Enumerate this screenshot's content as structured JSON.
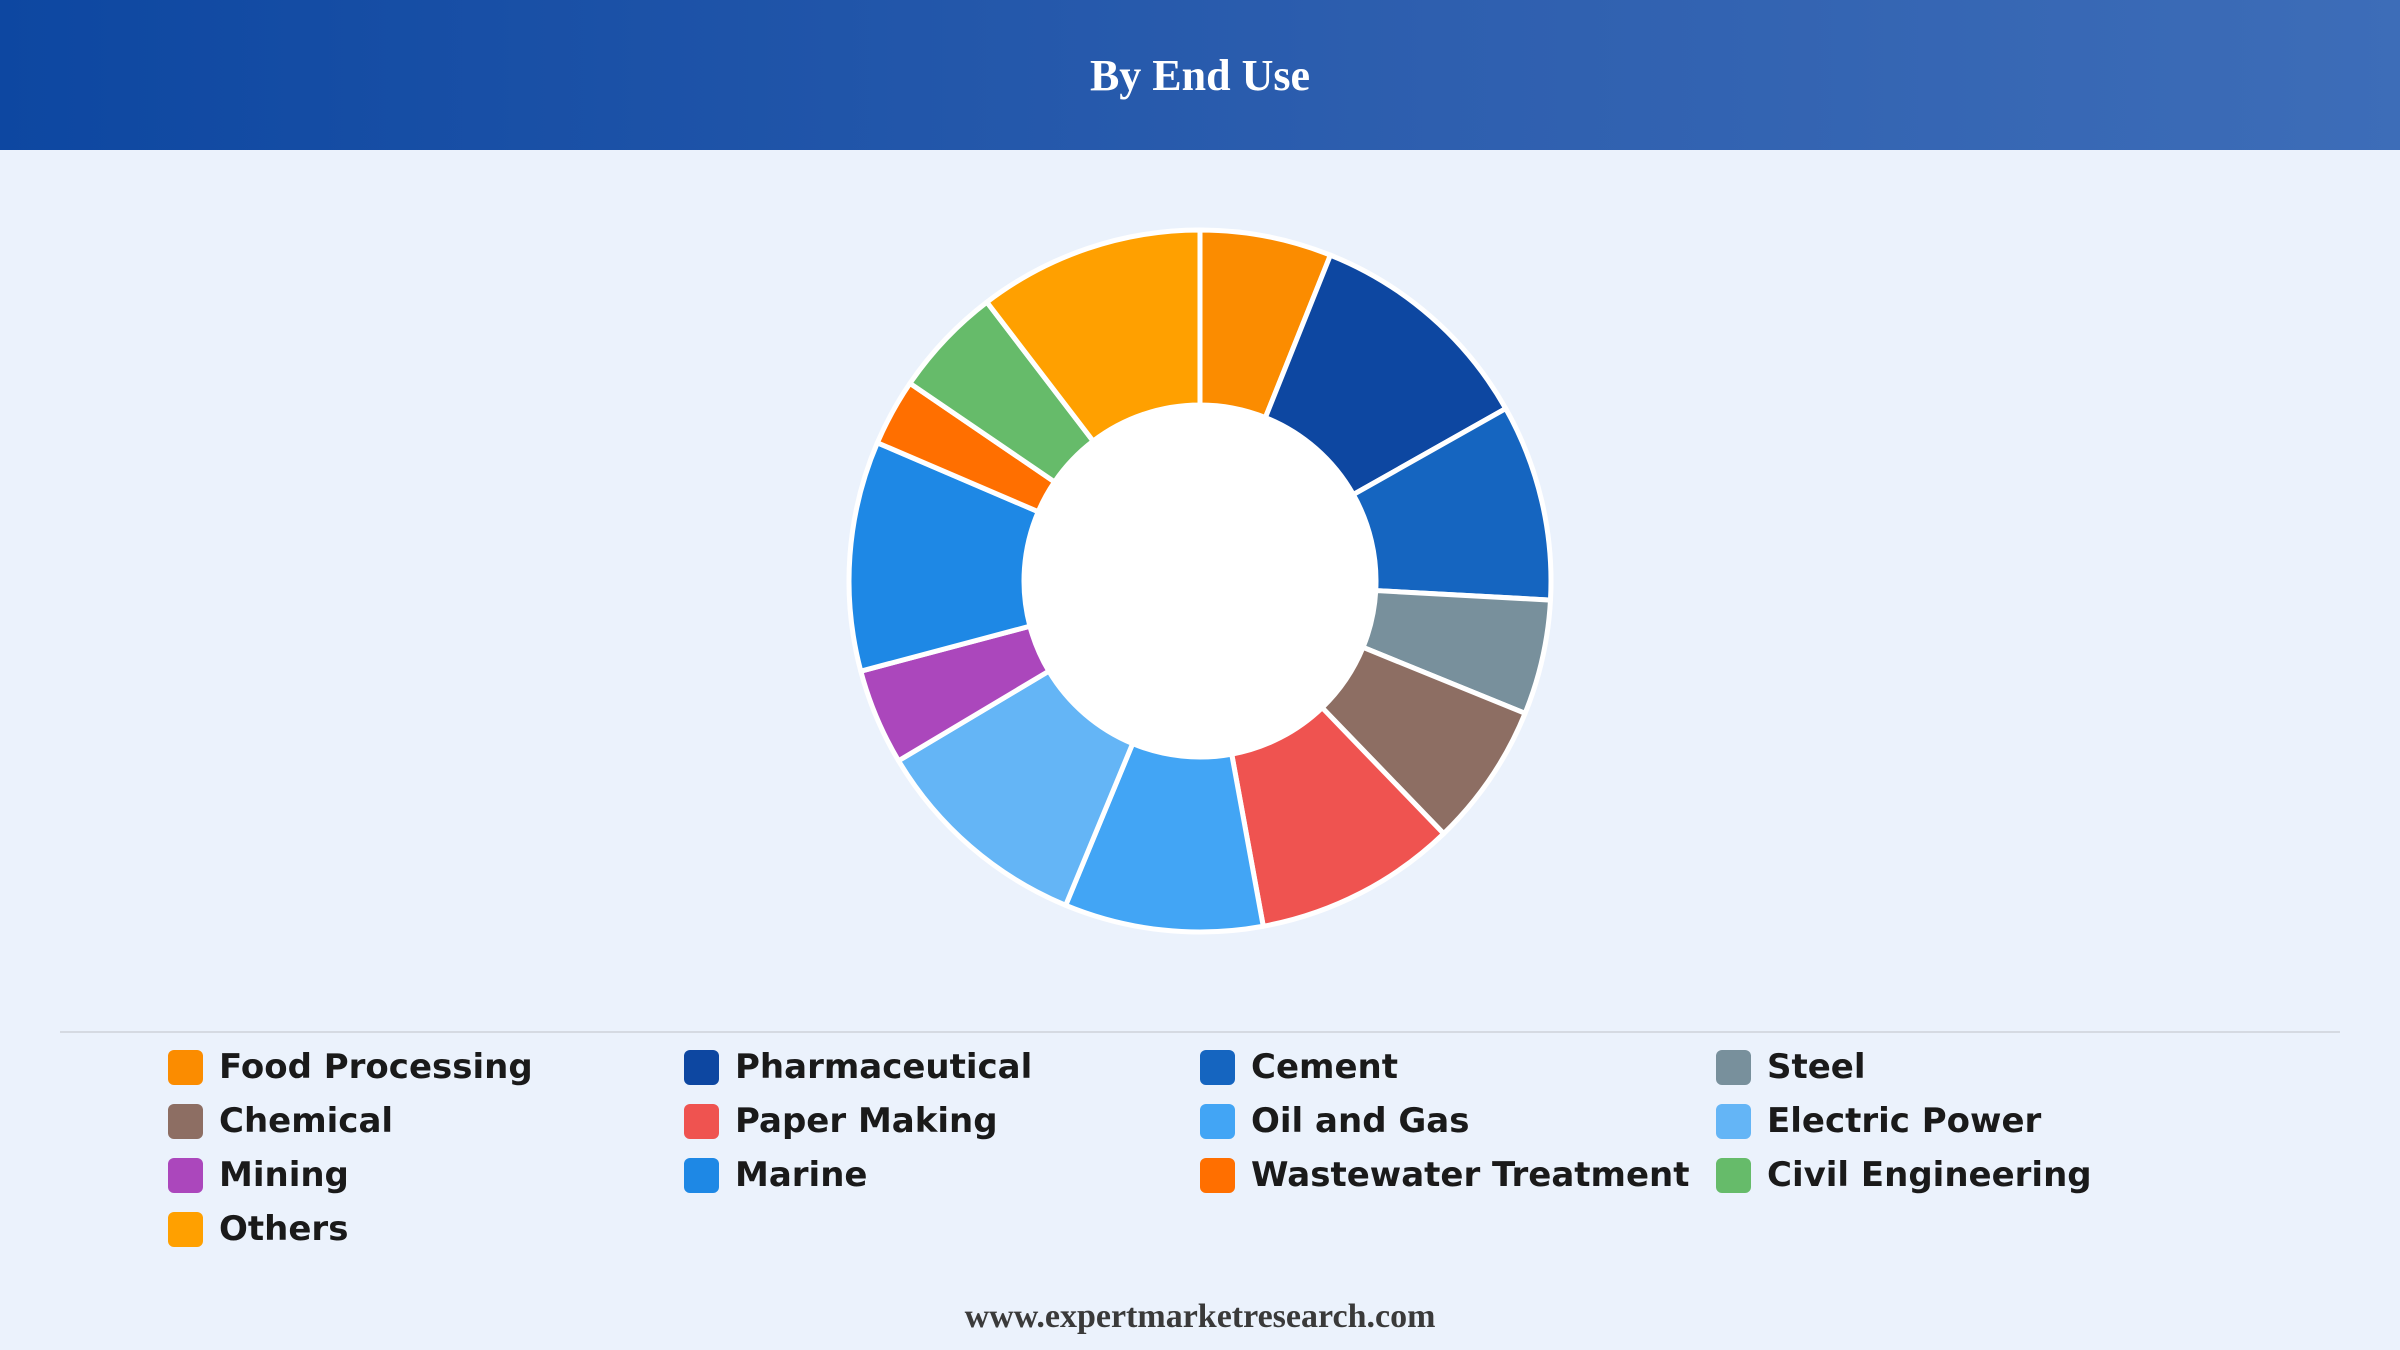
{
  "header": {
    "title": "By End Use"
  },
  "footer": {
    "source": "www.expertmarketresearch.com"
  },
  "chart_data": {
    "type": "pie",
    "donut": true,
    "title": "By End Use",
    "legend_position": "bottom",
    "categories": [
      "Food Processing",
      "Pharmaceutical",
      "Cement",
      "Steel",
      "Chemical",
      "Paper Making",
      "Oil and Gas",
      "Electric Power",
      "Mining",
      "Marine",
      "Wastewater Treatment",
      "Civil Engineering",
      "Others"
    ],
    "values": [
      6.3,
      11.2,
      9.4,
      5.5,
      6.9,
      9.7,
      9.5,
      10.6,
      4.6,
      11.0,
      3.2,
      5.3,
      10.8
    ],
    "colors": [
      "#fb8c00",
      "#0d47a1",
      "#1565c0",
      "#78909c",
      "#8d6e63",
      "#ef5350",
      "#42a5f5",
      "#64b5f6",
      "#ab47bc",
      "#1e88e5",
      "#ff6f00",
      "#66bb6a",
      "#ffa000"
    ]
  }
}
